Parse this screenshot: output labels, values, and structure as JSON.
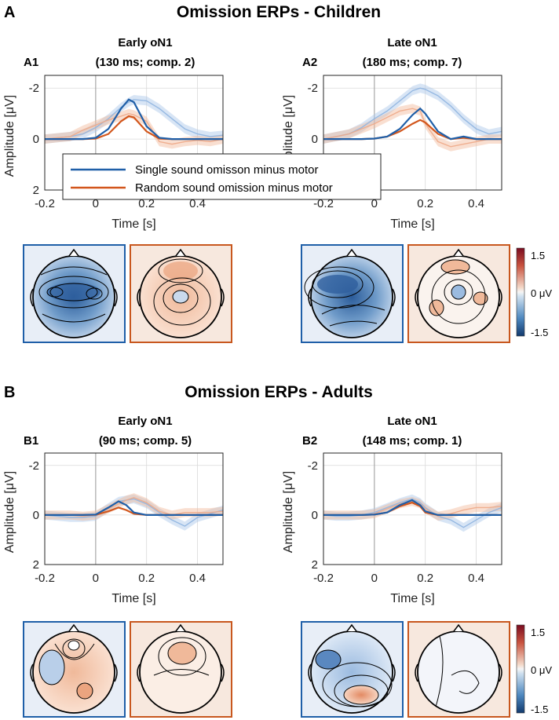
{
  "legend": {
    "single": "Single sound omisson minus motor",
    "random": "Random sound omission minus motor"
  },
  "colors": {
    "single": "#1f5fa8",
    "random": "#d2561c",
    "single_shade": "#a9c6e8",
    "random_shade": "#f2b89a",
    "blue_box": "#1f5fa8",
    "orange_box": "#c8571e"
  },
  "colorbar": {
    "top": "1.5",
    "mid": "0 μV",
    "bottom": "-1.5"
  },
  "sections": [
    {
      "letter": "A",
      "title": "Omission ERPs - Children",
      "panels": [
        {
          "id": "A1",
          "title1": "Early oN1",
          "title2": "(130 ms; comp. 2)",
          "xlabel": "Time [s]",
          "ylabel": "Amplitude [μV]",
          "xticks": [
            "-0.2",
            "0",
            "0.2",
            "0.4"
          ],
          "yticks": [
            "-2",
            "0",
            "2"
          ]
        },
        {
          "id": "A2",
          "title1": "Late oN1",
          "title2": "(180 ms; comp. 7)",
          "xlabel": "Time [s]",
          "ylabel": "Amplitude [μV]",
          "xticks": [
            "-0.2",
            "0",
            "0.2",
            "0.4"
          ],
          "yticks": [
            "-2",
            "0",
            "2"
          ]
        }
      ]
    },
    {
      "letter": "B",
      "title": "Omission ERPs - Adults",
      "panels": [
        {
          "id": "B1",
          "title1": "Early oN1",
          "title2": "(90 ms; comp. 5)",
          "xlabel": "Time [s]",
          "ylabel": "Amplitude [μV]",
          "xticks": [
            "-0.2",
            "0",
            "0.2",
            "0.4"
          ],
          "yticks": [
            "-2",
            "0",
            "2"
          ]
        },
        {
          "id": "B2",
          "title1": "Late oN1",
          "title2": "(148 ms; comp. 1)",
          "xlabel": "Time [s]",
          "ylabel": "Amplitude [μV]",
          "xticks": [
            "-0.2",
            "0",
            "0.2",
            "0.4"
          ],
          "yticks": [
            "-2",
            "0",
            "2"
          ]
        }
      ]
    }
  ],
  "chart_data": [
    {
      "type": "line",
      "panel": "A1",
      "title": "Early oN1 (130 ms; comp. 2)",
      "xlabel": "Time [s]",
      "ylabel": "Amplitude [μV]",
      "xlim": [
        -0.2,
        0.5
      ],
      "ylim": [
        2,
        -2.5
      ],
      "x": [
        -0.2,
        -0.15,
        -0.1,
        -0.05,
        0.0,
        0.05,
        0.1,
        0.13,
        0.15,
        0.2,
        0.25,
        0.3,
        0.35,
        0.4,
        0.45,
        0.5
      ],
      "series": [
        {
          "name": "Single sound omisson minus motor",
          "values": [
            0,
            0,
            0,
            0,
            -0.05,
            -0.4,
            -1.2,
            -1.55,
            -1.45,
            -0.5,
            -0.05,
            0,
            0,
            0,
            0,
            0
          ]
        },
        {
          "name": "Random sound omission minus motor",
          "values": [
            0,
            0,
            0,
            0,
            -0.02,
            -0.2,
            -0.7,
            -0.9,
            -0.85,
            -0.3,
            -0.02,
            0,
            0,
            0,
            0,
            0
          ]
        },
        {
          "name": "Single sound omisson minus motor (raw)",
          "values": [
            0,
            -0.05,
            -0.1,
            -0.2,
            -0.45,
            -0.8,
            -1.25,
            -1.45,
            -1.55,
            -1.5,
            -1.2,
            -0.8,
            -0.4,
            -0.2,
            -0.1,
            -0.15
          ]
        },
        {
          "name": "Random sound omission minus motor (raw)",
          "values": [
            0,
            -0.05,
            -0.1,
            -0.35,
            -0.55,
            -0.75,
            -0.9,
            -1.0,
            -0.95,
            -0.7,
            0.1,
            0.2,
            0.1,
            0.05,
            0.1,
            0.0
          ]
        }
      ]
    },
    {
      "type": "line",
      "panel": "A2",
      "title": "Late oN1 (180 ms; comp. 7)",
      "xlabel": "Time [s]",
      "ylabel": "Amplitude [μV]",
      "xlim": [
        -0.2,
        0.5
      ],
      "ylim": [
        2,
        -2.5
      ],
      "x": [
        -0.2,
        -0.15,
        -0.1,
        -0.05,
        0.0,
        0.05,
        0.1,
        0.15,
        0.18,
        0.2,
        0.25,
        0.3,
        0.35,
        0.4,
        0.45,
        0.5
      ],
      "series": [
        {
          "name": "Single sound omisson minus motor",
          "values": [
            0,
            0,
            0,
            0,
            -0.02,
            -0.1,
            -0.4,
            -0.95,
            -1.2,
            -1.0,
            -0.3,
            0,
            -0.1,
            0,
            0,
            0
          ]
        },
        {
          "name": "Random sound omission minus motor",
          "values": [
            0,
            0,
            0,
            0,
            -0.02,
            -0.1,
            -0.3,
            -0.6,
            -0.75,
            -0.65,
            -0.2,
            0,
            -0.05,
            0,
            0,
            0
          ]
        },
        {
          "name": "Single sound omisson minus motor (raw)",
          "values": [
            0,
            -0.1,
            -0.2,
            -0.45,
            -0.8,
            -1.1,
            -1.5,
            -1.9,
            -2.0,
            -1.95,
            -1.7,
            -1.3,
            -0.8,
            -0.4,
            -0.2,
            -0.3
          ]
        },
        {
          "name": "Random sound omission minus motor (raw)",
          "values": [
            0,
            -0.1,
            -0.2,
            -0.4,
            -0.6,
            -0.85,
            -1.1,
            -1.2,
            -1.1,
            -0.6,
            0.1,
            0.3,
            0.2,
            0.1,
            0.0,
            0.0
          ]
        }
      ]
    },
    {
      "type": "line",
      "panel": "B1",
      "title": "Early oN1 (90 ms; comp. 5)",
      "xlabel": "Time [s]",
      "ylabel": "Amplitude [μV]",
      "xlim": [
        -0.2,
        0.5
      ],
      "ylim": [
        2,
        -2.5
      ],
      "x": [
        -0.2,
        -0.15,
        -0.1,
        -0.05,
        0.0,
        0.05,
        0.09,
        0.12,
        0.15,
        0.2,
        0.25,
        0.3,
        0.35,
        0.4,
        0.45,
        0.5
      ],
      "series": [
        {
          "name": "Single sound omisson minus motor",
          "values": [
            0,
            0,
            0,
            0,
            -0.02,
            -0.3,
            -0.55,
            -0.4,
            -0.1,
            0,
            0,
            0,
            0,
            0,
            0,
            0
          ]
        },
        {
          "name": "Random sound omission minus motor",
          "values": [
            0,
            0,
            0,
            0,
            -0.01,
            -0.15,
            -0.3,
            -0.2,
            -0.05,
            0,
            0,
            0,
            0,
            0,
            0,
            0
          ]
        },
        {
          "name": "Single sound omisson minus motor (raw)",
          "values": [
            0,
            0.05,
            0.1,
            0.1,
            0.05,
            -0.3,
            -0.55,
            -0.6,
            -0.65,
            -0.45,
            -0.1,
            0.2,
            0.45,
            0.1,
            -0.05,
            -0.2
          ]
        },
        {
          "name": "Random sound omission minus motor (raw)",
          "values": [
            0,
            0,
            0,
            0.05,
            0.0,
            -0.25,
            -0.45,
            -0.6,
            -0.7,
            -0.5,
            -0.15,
            0.0,
            -0.1,
            -0.1,
            -0.1,
            -0.15
          ]
        }
      ]
    },
    {
      "type": "line",
      "panel": "B2",
      "title": "Late oN1 (148 ms; comp. 1)",
      "xlabel": "Time [s]",
      "ylabel": "Amplitude [μV]",
      "xlim": [
        -0.2,
        0.5
      ],
      "ylim": [
        2,
        -2.5
      ],
      "x": [
        -0.2,
        -0.15,
        -0.1,
        -0.05,
        0.0,
        0.05,
        0.1,
        0.148,
        0.18,
        0.2,
        0.25,
        0.3,
        0.35,
        0.4,
        0.45,
        0.5
      ],
      "series": [
        {
          "name": "Single sound omisson minus motor",
          "values": [
            0,
            0,
            0,
            0,
            -0.02,
            -0.1,
            -0.4,
            -0.6,
            -0.4,
            -0.15,
            0,
            0,
            0,
            0,
            0,
            0
          ]
        },
        {
          "name": "Random sound omission minus motor",
          "values": [
            0,
            0,
            0,
            0,
            -0.02,
            -0.1,
            -0.35,
            -0.5,
            -0.35,
            -0.1,
            0,
            0,
            0,
            0,
            0,
            0
          ]
        },
        {
          "name": "Single sound omisson minus motor (raw)",
          "values": [
            0,
            0.05,
            0.05,
            0.0,
            -0.1,
            -0.3,
            -0.5,
            -0.65,
            -0.5,
            -0.3,
            0.05,
            0.2,
            0.5,
            0.2,
            -0.1,
            -0.3
          ]
        },
        {
          "name": "Random sound omission minus motor (raw)",
          "values": [
            0,
            0,
            0,
            0,
            -0.05,
            -0.25,
            -0.45,
            -0.55,
            -0.45,
            -0.25,
            0.05,
            -0.05,
            -0.2,
            -0.3,
            -0.3,
            -0.35
          ]
        }
      ]
    }
  ]
}
